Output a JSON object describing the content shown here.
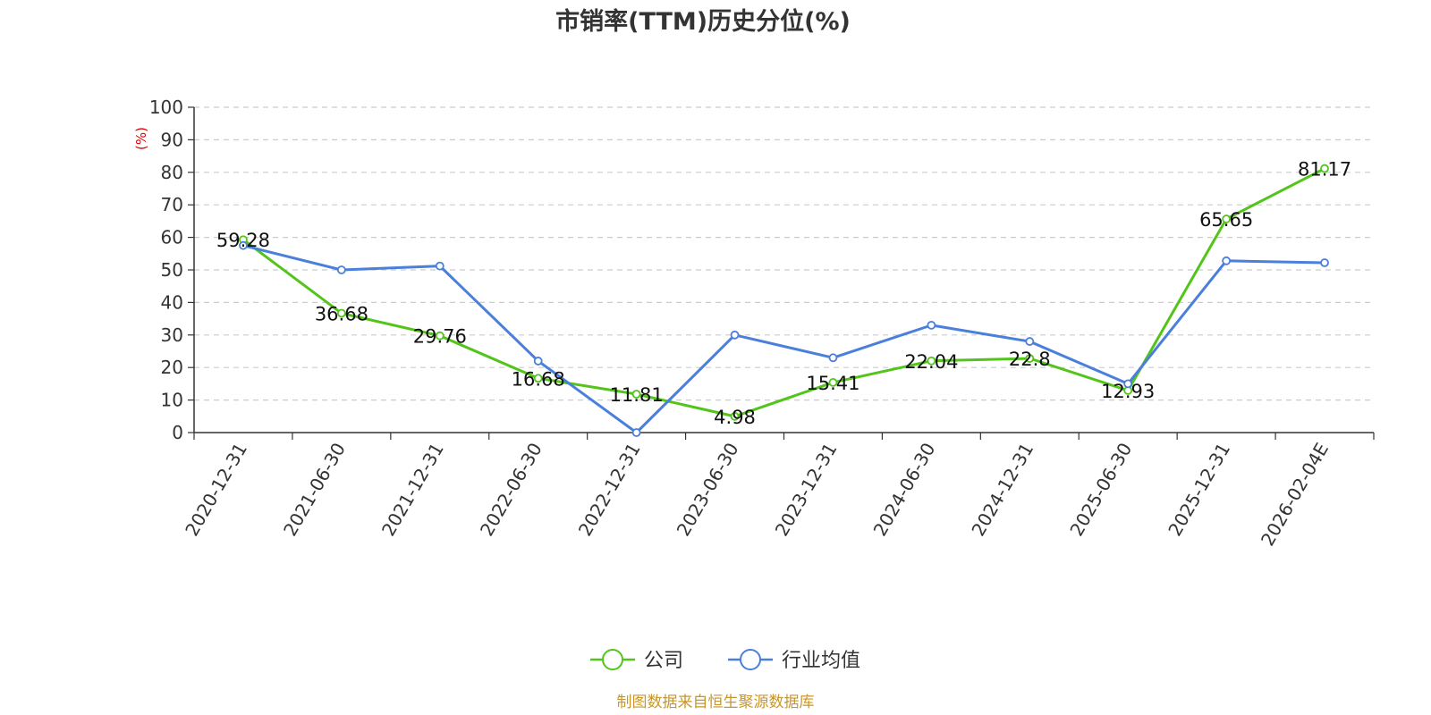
{
  "chart_data": {
    "type": "line",
    "title": "市销率(TTM)历史分位(%)",
    "ylabel": "(%)",
    "ylim": [
      0,
      100
    ],
    "yticks": [
      0,
      10,
      20,
      30,
      40,
      50,
      60,
      70,
      80,
      90,
      100
    ],
    "grid": true,
    "legend_position": "bottom",
    "categories": [
      "2020-12-31",
      "2021-06-30",
      "2021-12-31",
      "2022-06-30",
      "2022-12-31",
      "2023-06-30",
      "2023-12-31",
      "2024-06-30",
      "2024-12-31",
      "2025-06-30",
      "2025-12-31",
      "2026-02-04E"
    ],
    "series": [
      {
        "name": "公司",
        "color": "#52c41a",
        "values": [
          59.28,
          36.68,
          29.76,
          16.68,
          11.81,
          4.98,
          15.41,
          22.04,
          22.8,
          12.93,
          65.65,
          81.17
        ],
        "labels": [
          "59.28",
          "36.68",
          "29.76",
          "16.68",
          "11.81",
          "4.98",
          "15.41",
          "22.04",
          "22.8",
          "12.93",
          "65.65",
          "81.17"
        ]
      },
      {
        "name": "行业均值",
        "color": "#4a7fdc",
        "values": [
          57.5,
          50.0,
          51.2,
          22.0,
          0.0,
          30.0,
          23.0,
          33.0,
          28.0,
          15.0,
          52.8,
          52.2
        ]
      }
    ],
    "source": "制图数据来自恒生聚源数据库",
    "unit_color": "#e00000",
    "source_color": "#c8962a"
  }
}
